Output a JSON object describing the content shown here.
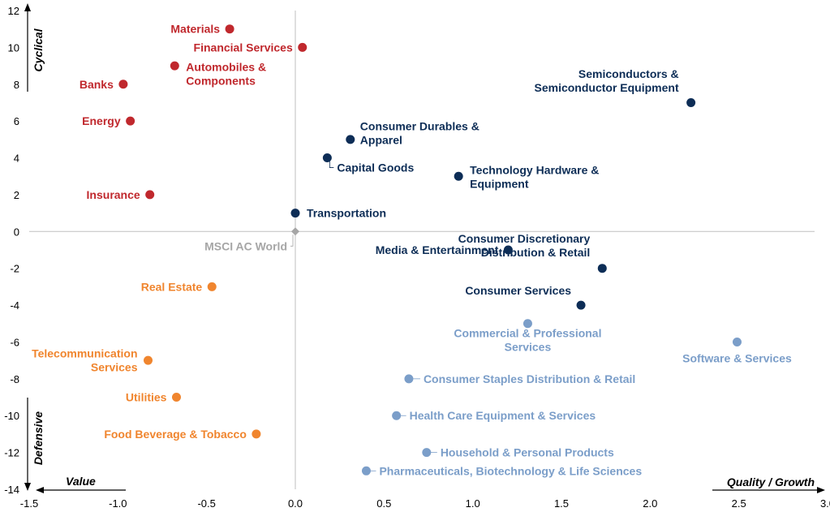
{
  "chart_data": {
    "type": "scatter",
    "xlim": [
      -1.5,
      3.0
    ],
    "ylim": [
      -14,
      12
    ],
    "x_ticks": [
      "-1.5",
      "-1.0",
      "-0.5",
      "0.0",
      "0.5",
      "1.0",
      "1.5",
      "2.0",
      "2.5",
      "3.0"
    ],
    "y_ticks": [
      "12",
      "10",
      "8",
      "6",
      "4",
      "2",
      "0",
      "-2",
      "-4",
      "-6",
      "-8",
      "-10",
      "-12",
      "-14"
    ],
    "grid": false,
    "axis_titles": {
      "cyclical": "Cyclical",
      "defensive": "Defensive",
      "value": "Value",
      "quality_growth": "Quality / Growth"
    },
    "colors": {
      "cyclical_value": "#c0282d",
      "cyclical_growth": "#0d2d56",
      "defensive_value": "#f0852e",
      "defensive_growth": "#7b9ec9",
      "benchmark": "#a6a6a6"
    },
    "points": [
      {
        "label": [
          "Materials"
        ],
        "x": -0.37,
        "y": 11.0,
        "group": "cyclical_value"
      },
      {
        "label": [
          "Financial  Services"
        ],
        "x": 0.04,
        "y": 10.0,
        "group": "cyclical_value"
      },
      {
        "label": [
          "Automobiles  &",
          "Components"
        ],
        "x": -0.68,
        "y": 9.0,
        "group": "cyclical_value"
      },
      {
        "label": [
          "Banks"
        ],
        "x": -0.97,
        "y": 8.0,
        "group": "cyclical_value"
      },
      {
        "label": [
          "Energy"
        ],
        "x": -0.93,
        "y": 6.0,
        "group": "cyclical_value"
      },
      {
        "label": [
          "Insurance"
        ],
        "x": -0.82,
        "y": 2.0,
        "group": "cyclical_value"
      },
      {
        "label": [
          "Semiconductors &",
          "Semiconductor Equipment"
        ],
        "x": 2.23,
        "y": 7.0,
        "group": "cyclical_growth"
      },
      {
        "label": [
          "Consumer Durables &",
          "Apparel"
        ],
        "x": 0.31,
        "y": 5.0,
        "group": "cyclical_growth"
      },
      {
        "label": [
          "Capital Goods"
        ],
        "x": 0.18,
        "y": 4.0,
        "group": "cyclical_growth"
      },
      {
        "label": [
          "Technology Hardware &",
          "Equipment"
        ],
        "x": 0.92,
        "y": 3.0,
        "group": "cyclical_growth"
      },
      {
        "label": [
          "Transportation"
        ],
        "x": 0.0,
        "y": 1.0,
        "group": "cyclical_growth"
      },
      {
        "label": [
          "Media & Entertainment"
        ],
        "x": 1.2,
        "y": -1.0,
        "group": "cyclical_growth"
      },
      {
        "label": [
          "Consumer Discretionary",
          "Distribution & Retail"
        ],
        "x": 1.73,
        "y": -2.0,
        "group": "cyclical_growth"
      },
      {
        "label": [
          "Consumer Services"
        ],
        "x": 1.61,
        "y": -4.0,
        "group": "cyclical_growth"
      },
      {
        "label": [
          "MSCI AC World"
        ],
        "x": 0.0,
        "y": 0.0,
        "group": "benchmark"
      },
      {
        "label": [
          "Real Estate"
        ],
        "x": -0.47,
        "y": -3.0,
        "group": "defensive_value"
      },
      {
        "label": [
          "Telecommunication",
          "Services"
        ],
        "x": -0.83,
        "y": -7.0,
        "group": "defensive_value"
      },
      {
        "label": [
          "Utilities"
        ],
        "x": -0.67,
        "y": -9.0,
        "group": "defensive_value"
      },
      {
        "label": [
          "Food Beverage & Tobacco"
        ],
        "x": -0.22,
        "y": -11.0,
        "group": "defensive_value"
      },
      {
        "label": [
          "Commercial  & Professional",
          "Services"
        ],
        "x": 1.31,
        "y": -5.0,
        "group": "defensive_growth"
      },
      {
        "label": [
          "Software & Services"
        ],
        "x": 2.49,
        "y": -6.0,
        "group": "defensive_growth"
      },
      {
        "label": [
          "Consumer Staples Distribution & Retail"
        ],
        "x": 0.64,
        "y": -8.0,
        "group": "defensive_growth"
      },
      {
        "label": [
          "Health Care Equipment & Services"
        ],
        "x": 0.57,
        "y": -10.0,
        "group": "defensive_growth"
      },
      {
        "label": [
          "Household & Personal Products"
        ],
        "x": 0.74,
        "y": -12.0,
        "group": "defensive_growth"
      },
      {
        "label": [
          "Pharmaceuticals, Biotechnology & Life Sciences"
        ],
        "x": 0.4,
        "y": -13.0,
        "group": "defensive_growth"
      }
    ]
  }
}
